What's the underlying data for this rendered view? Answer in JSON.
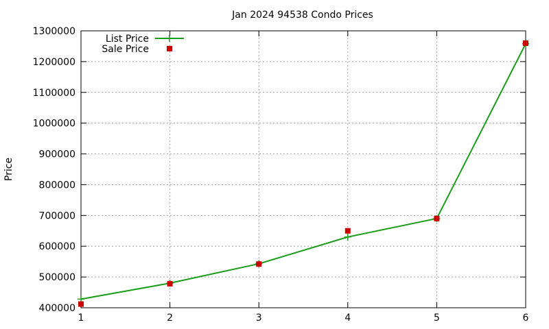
{
  "chart_data": {
    "type": "line",
    "title": "Jan 2024 94538 Condo Prices",
    "xlabel": "",
    "ylabel": "Price",
    "x": [
      1,
      2,
      3,
      4,
      5,
      6
    ],
    "xlim": [
      1,
      6
    ],
    "ylim": [
      400000,
      1300000
    ],
    "xticks": [
      "1",
      "2",
      "3",
      "4",
      "5",
      "6"
    ],
    "yticks": [
      "400000",
      "500000",
      "600000",
      "700000",
      "800000",
      "900000",
      "1000000",
      "1100000",
      "1200000",
      "1300000"
    ],
    "grid": true,
    "legend_position": "top-left",
    "series": [
      {
        "name": "List Price",
        "style": "lines+points",
        "color": "#1a9e1a",
        "values": [
          428000,
          480000,
          543000,
          630000,
          690000,
          1258000
        ]
      },
      {
        "name": "Sale Price",
        "style": "points",
        "color": "#cc0000",
        "values": [
          412000,
          478000,
          542000,
          650000,
          690000,
          1260000
        ]
      }
    ]
  }
}
